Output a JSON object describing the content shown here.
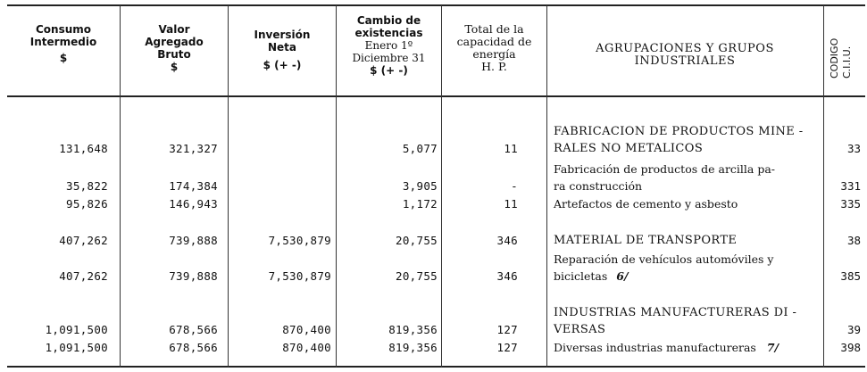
{
  "headers": {
    "consumo": [
      "Consumo",
      "Intermedio",
      "$"
    ],
    "valor": [
      "Valor",
      "Agregado",
      "Bruto",
      "$"
    ],
    "inversion": [
      "Inversión",
      "Neta",
      "$ (+ -)"
    ],
    "cambio": [
      "Cambio de",
      "existencias",
      "Enero 1º",
      "Diciembre 31",
      "$ (+ -)"
    ],
    "capacidad": [
      "Total de la",
      "capacidad de",
      "energía",
      "H. P."
    ],
    "agrupaciones": [
      "AGRUPACIONES Y GRUPOS",
      "INDUSTRIALES"
    ],
    "codigo": [
      "CODIGO",
      "C.I.I.U."
    ]
  },
  "rows": [
    {
      "consumo": "",
      "valor": "",
      "inversion": "",
      "cambio": "",
      "hp": "",
      "desc": "FABRICACION DE PRODUCTOS MINE -",
      "code": "",
      "group": true
    },
    {
      "consumo": "131,648",
      "valor": "321,327",
      "inversion": "",
      "cambio": "5,077",
      "hp": "11",
      "desc": "RALES NO METALICOS",
      "code": "33",
      "group": true
    },
    {
      "consumo": "",
      "valor": "",
      "inversion": "",
      "cambio": "",
      "hp": "",
      "desc": "Fabricación de productos de arcilla pa-",
      "code": "",
      "group": false
    },
    {
      "consumo": "35,822",
      "valor": "174,384",
      "inversion": "",
      "cambio": "3,905",
      "hp": "-",
      "desc": "ra construcción",
      "code": "331",
      "group": false
    },
    {
      "consumo": "95,826",
      "valor": "146,943",
      "inversion": "",
      "cambio": "1,172",
      "hp": "11",
      "desc": "Artefactos de cemento y asbesto",
      "code": "335",
      "group": false
    },
    {
      "consumo": "407,262",
      "valor": "739,888",
      "inversion": "7,530,879",
      "cambio": "20,755",
      "hp": "346",
      "desc": "MATERIAL DE TRANSPORTE",
      "code": "38",
      "group": true
    },
    {
      "consumo": "",
      "valor": "",
      "inversion": "",
      "cambio": "",
      "hp": "",
      "desc": "Reparación de vehículos automóviles y",
      "code": "",
      "group": false
    },
    {
      "consumo": "407,262",
      "valor": "739,888",
      "inversion": "7,530,879",
      "cambio": "20,755",
      "hp": "346",
      "desc": "bicicletas",
      "note": "6/",
      "code": "385",
      "group": false
    },
    {
      "consumo": "",
      "valor": "",
      "inversion": "",
      "cambio": "",
      "hp": "",
      "desc": "INDUSTRIAS MANUFACTURERAS DI -",
      "code": "",
      "group": true
    },
    {
      "consumo": "1,091,500",
      "valor": "678,566",
      "inversion": "870,400",
      "cambio": "819,356",
      "hp": "127",
      "desc": "VERSAS",
      "code": "39",
      "group": true
    },
    {
      "consumo": "1,091,500",
      "valor": "678,566",
      "inversion": "870,400",
      "cambio": "819,356",
      "hp": "127",
      "desc": "Diversas industrias manufactureras",
      "note": "7/",
      "code": "398",
      "group": false
    }
  ]
}
